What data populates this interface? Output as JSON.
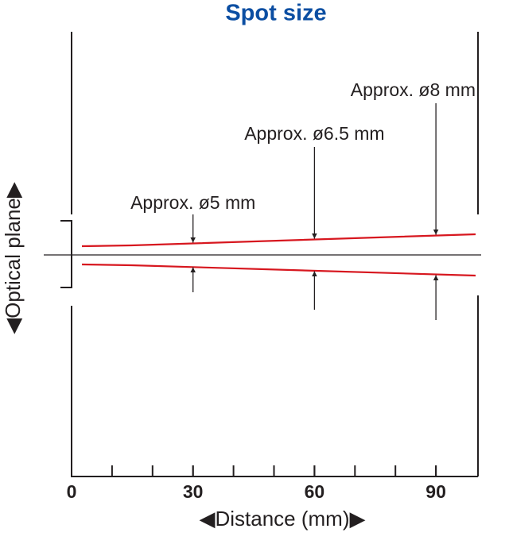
{
  "diagram": {
    "title": "Spot size",
    "y_label": "◀Optical plane▶",
    "x_label": "◀Distance (mm)▶",
    "xlim": [
      0,
      100
    ],
    "xticks": [
      0,
      30,
      60,
      90
    ],
    "minor_step": 10,
    "annotations": [
      {
        "x": 30,
        "label": "Approx. ø5 mm"
      },
      {
        "x": 60,
        "label": "Approx. ø6.5 mm"
      },
      {
        "x": 90,
        "label": "Approx. ø8 mm"
      }
    ]
  }
}
